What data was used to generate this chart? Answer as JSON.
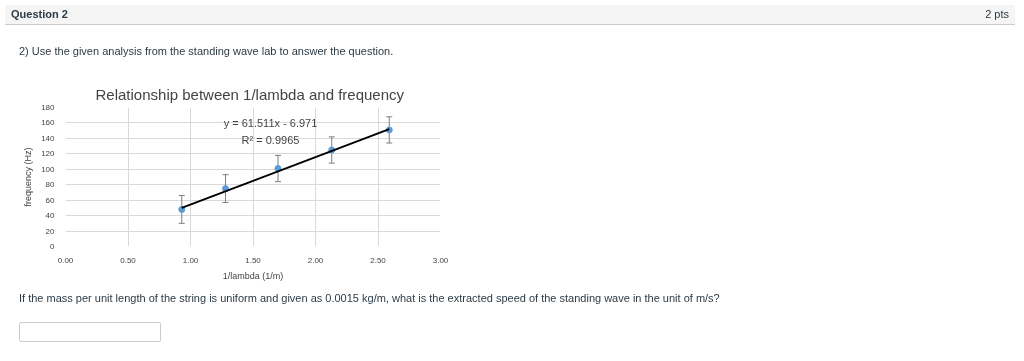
{
  "chart_data": {
    "type": "scatter",
    "title": "Relationship between 1/lambda and frequency",
    "xlabel": "1/lambda (1/m)",
    "ylabel": "frequency (Hz)",
    "annotations": [
      "Question 2",
      "2 pts",
      "2) Use the given analysis from the standing wave lab to answer the question.",
      "y = 61.511x - 6.971",
      "R² = 0.9965",
      "If the mass per unit length of the string is uniform and given as 0.0015 kg/m, what is the extracted speed of the standing wave in the unit of m/s?"
    ],
    "series": [
      {
        "color": "#5b9bd5",
        "x": [
          0.93,
          1.28,
          1.7,
          2.13,
          2.59
        ],
        "values": [
          48,
          75,
          101,
          125,
          151
        ],
        "errors": [
          18,
          18,
          17,
          17,
          17
        ]
      },
      {
        "type": "line",
        "color": "#000000",
        "x": [
          0.93,
          2.59
        ],
        "values": [
          50,
          152
        ]
      }
    ],
    "xlim": [
      0,
      3
    ],
    "ylim": [
      0,
      180
    ],
    "xticks": [
      {
        "value": 0,
        "label": "0.00"
      },
      {
        "value": 0.5,
        "label": "0.50"
      },
      {
        "value": 1,
        "label": "1.00"
      },
      {
        "value": 1.5,
        "label": "1.50"
      },
      {
        "value": 2,
        "label": "2.00"
      },
      {
        "value": 2.5,
        "label": "2.50"
      },
      {
        "value": 3,
        "label": "3.00"
      }
    ],
    "yticks": [
      0,
      20,
      40,
      60,
      80,
      100,
      120,
      140,
      160,
      180
    ],
    "grid": true
  }
}
